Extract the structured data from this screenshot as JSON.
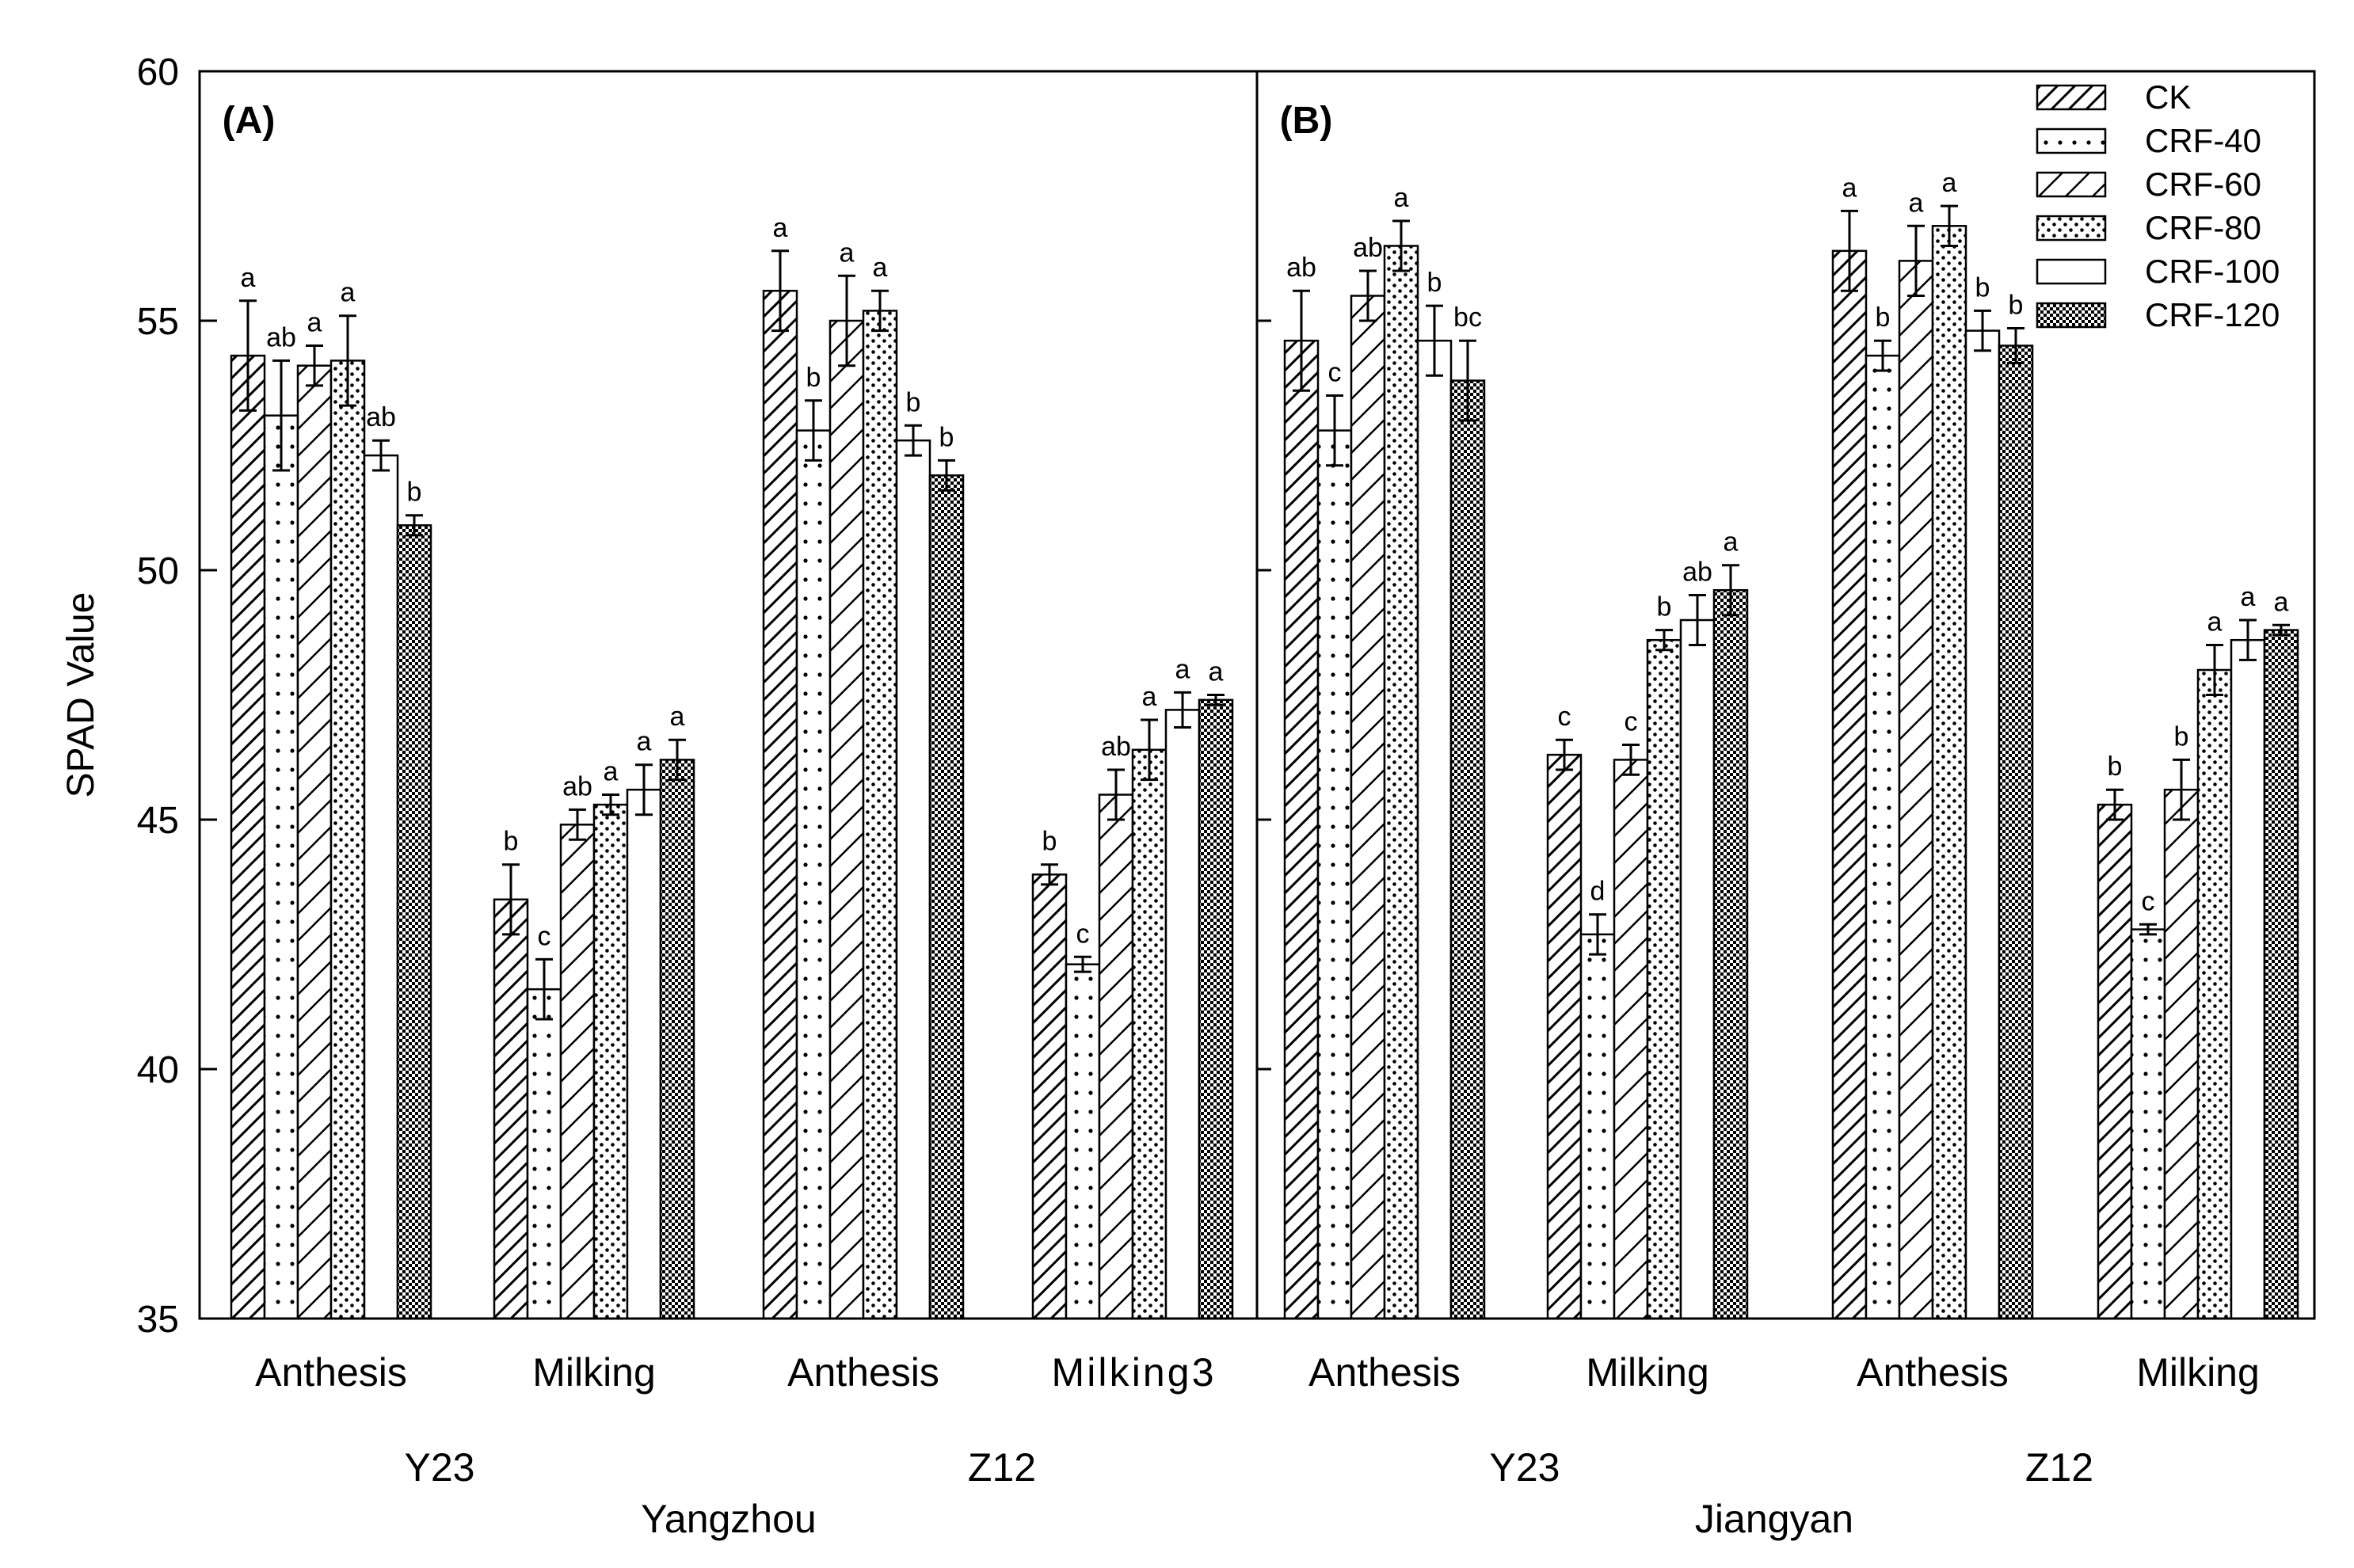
{
  "chart_data": {
    "type": "bar",
    "ylabel": "SPAD Value",
    "ylim": [
      35,
      60
    ],
    "yticks": [
      35,
      40,
      45,
      50,
      55,
      60
    ],
    "legend": {
      "position": "top-right",
      "entries": [
        {
          "name": "CK",
          "pattern": "hatch-wide"
        },
        {
          "name": "CRF-40",
          "pattern": "dots-sparse"
        },
        {
          "name": "CRF-60",
          "pattern": "hatch-fine"
        },
        {
          "name": "CRF-80",
          "pattern": "dots-dense"
        },
        {
          "name": "CRF-100",
          "pattern": "blank"
        },
        {
          "name": "CRF-120",
          "pattern": "checker"
        }
      ]
    },
    "panels": [
      {
        "label": "(A)",
        "location": "Yangzhou",
        "groups": [
          {
            "cultivar": "Y23",
            "stage": "Anthesis",
            "values": [
              54.3,
              53.1,
              54.1,
              54.2,
              52.3,
              50.9
            ],
            "errors": [
              1.1,
              1.1,
              0.4,
              0.9,
              0.3,
              0.2
            ],
            "letters": [
              "a",
              "ab",
              "a",
              "a",
              "ab",
              "b"
            ]
          },
          {
            "cultivar": "Y23",
            "stage": "Milking",
            "values": [
              43.4,
              41.6,
              44.9,
              45.3,
              45.6,
              46.2
            ],
            "errors": [
              0.7,
              0.6,
              0.3,
              0.2,
              0.5,
              0.4
            ],
            "letters": [
              "b",
              "c",
              "ab",
              "a",
              "a",
              "a"
            ]
          },
          {
            "cultivar": "Z12",
            "stage": "Anthesis",
            "values": [
              55.6,
              52.8,
              55.0,
              55.2,
              52.6,
              51.9
            ],
            "errors": [
              0.8,
              0.6,
              0.9,
              0.4,
              0.3,
              0.3
            ],
            "letters": [
              "a",
              "b",
              "a",
              "a",
              "b",
              "b"
            ]
          },
          {
            "cultivar": "Z12",
            "stage": "Milking3",
            "values": [
              43.9,
              42.1,
              45.5,
              46.4,
              47.2,
              47.4
            ],
            "errors": [
              0.2,
              0.15,
              0.5,
              0.6,
              0.35,
              0.1
            ],
            "letters": [
              "b",
              "c",
              "ab",
              "a",
              "a",
              "a"
            ]
          }
        ]
      },
      {
        "label": "(B)",
        "location": "Jiangyan",
        "groups": [
          {
            "cultivar": "Y23",
            "stage": "Anthesis",
            "values": [
              54.6,
              52.8,
              55.5,
              56.5,
              54.6,
              53.8
            ],
            "errors": [
              1.0,
              0.7,
              0.5,
              0.5,
              0.7,
              0.8
            ],
            "letters": [
              "ab",
              "c",
              "ab",
              "a",
              "b",
              "bc"
            ]
          },
          {
            "cultivar": "Y23",
            "stage": "Milking",
            "values": [
              46.3,
              42.7,
              46.2,
              48.6,
              49.0,
              49.6
            ],
            "errors": [
              0.3,
              0.4,
              0.3,
              0.2,
              0.5,
              0.5
            ],
            "letters": [
              "c",
              "d",
              "c",
              "b",
              "ab",
              "a"
            ]
          },
          {
            "cultivar": "Z12",
            "stage": "Anthesis",
            "values": [
              56.4,
              54.3,
              56.2,
              56.9,
              54.8,
              54.5
            ],
            "errors": [
              0.8,
              0.3,
              0.7,
              0.4,
              0.4,
              0.35
            ],
            "letters": [
              "a",
              "b",
              "a",
              "a",
              "b",
              "b"
            ]
          },
          {
            "cultivar": "Z12",
            "stage": "Milking",
            "values": [
              45.3,
              42.8,
              45.6,
              48.0,
              48.6,
              48.8
            ],
            "errors": [
              0.3,
              0.1,
              0.6,
              0.5,
              0.4,
              0.1
            ],
            "letters": [
              "b",
              "c",
              "b",
              "a",
              "a",
              "a"
            ]
          }
        ]
      }
    ]
  }
}
